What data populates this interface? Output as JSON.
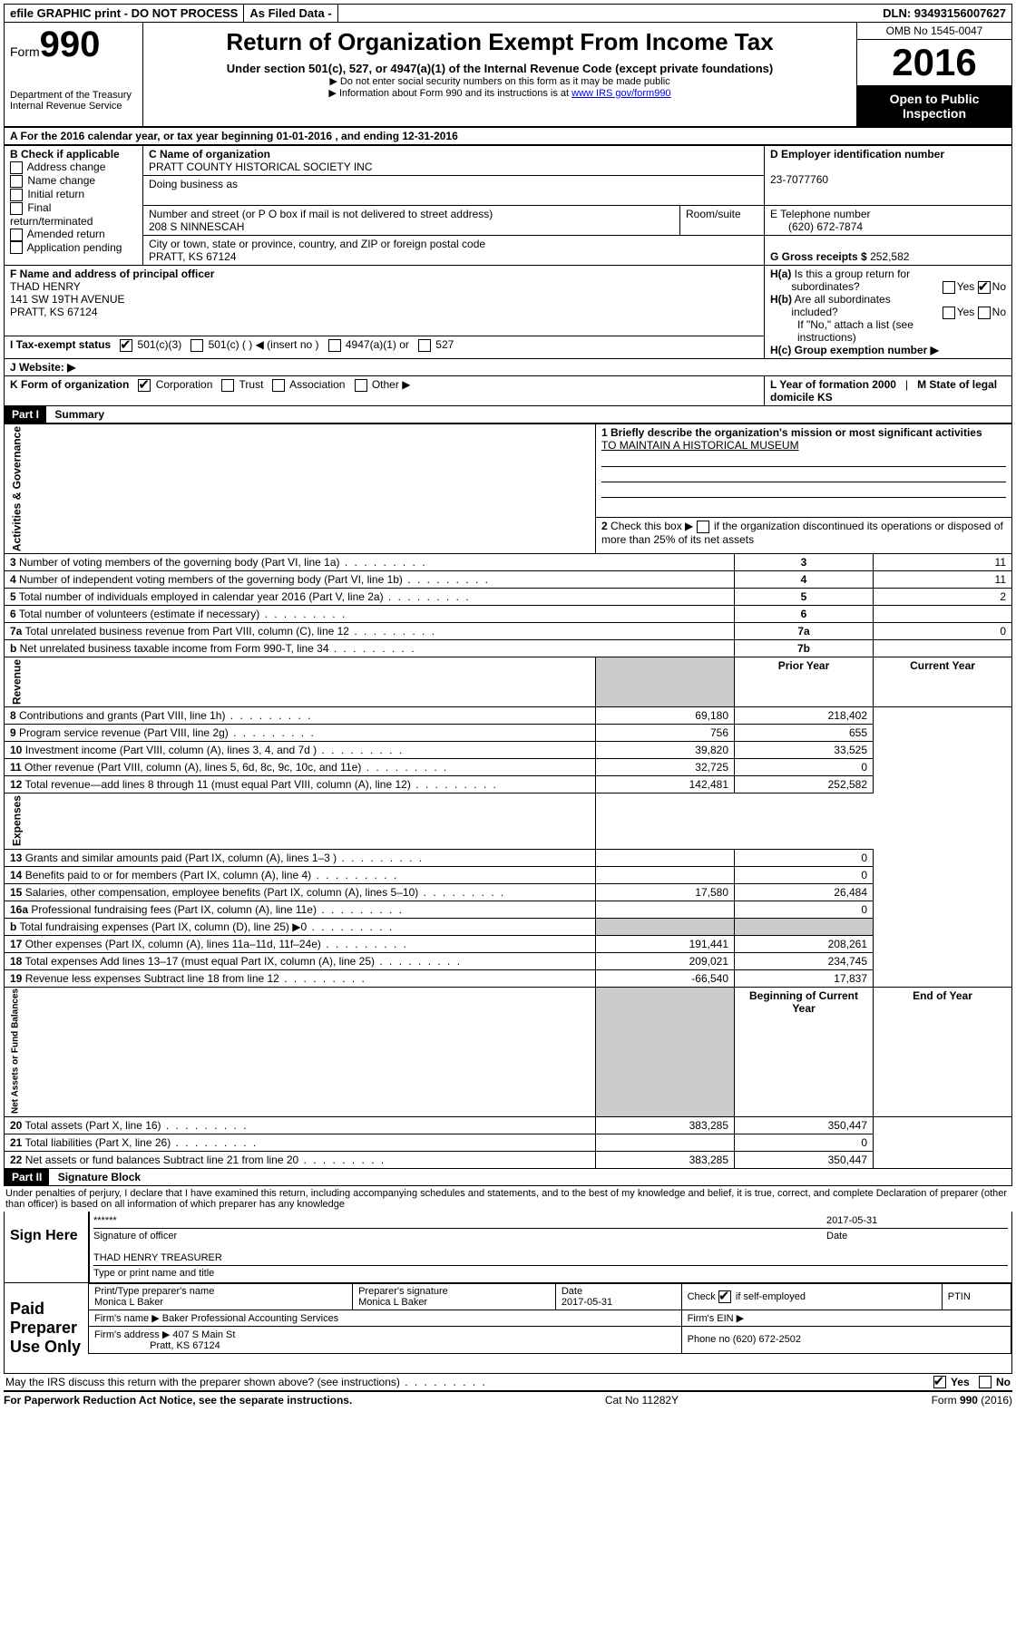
{
  "top": {
    "efile": "efile GRAPHIC print - DO NOT PROCESS",
    "asfiled": "As Filed Data -",
    "dln": "DLN: 93493156007627"
  },
  "header": {
    "form_label": "Form",
    "form_num": "990",
    "dept1": "Department of the Treasury",
    "dept2": "Internal Revenue Service",
    "title": "Return of Organization Exempt From Income Tax",
    "sub1": "Under section 501(c), 527, or 4947(a)(1) of the Internal Revenue Code (except private foundations)",
    "note1": "▶ Do not enter social security numbers on this form as it may be made public",
    "note2_pre": "▶ Information about Form 990 and its instructions is at ",
    "note2_link": "www IRS gov/form990",
    "omb": "OMB No 1545-0047",
    "year": "2016",
    "inspect": "Open to Public Inspection"
  },
  "lineA": "A  For the 2016 calendar year, or tax year beginning 01-01-2016  , and ending 12-31-2016",
  "boxB": {
    "label": "B Check if applicable",
    "opts": [
      "Address change",
      "Name change",
      "Initial return",
      "Final return/terminated",
      "Amended return",
      "Application pending"
    ]
  },
  "boxC": {
    "label": "C Name of organization",
    "name": "PRATT COUNTY HISTORICAL SOCIETY INC",
    "dba_label": "Doing business as",
    "street_label": "Number and street (or P O  box if mail is not delivered to street address)",
    "room_label": "Room/suite",
    "street": "208 S NINNESCAH",
    "city_label": "City or town, state or province, country, and ZIP or foreign postal code",
    "city": "PRATT, KS  67124"
  },
  "boxD": {
    "label": "D Employer identification number",
    "val": "23-7077760"
  },
  "boxE": {
    "label": "E Telephone number",
    "val": "(620) 672-7874"
  },
  "boxG": {
    "label": "G Gross receipts $",
    "val": "252,582"
  },
  "boxF": {
    "label": "F  Name and address of principal officer",
    "name": "THAD HENRY",
    "addr1": "141 SW 19TH AVENUE",
    "addr2": "PRATT, KS  67124"
  },
  "boxH": {
    "a": "H(a)  Is this a group return for subordinates?",
    "b": "H(b)  Are all subordinates included?",
    "note": "If \"No,\" attach a list  (see instructions)",
    "c": "H(c)  Group exemption number ▶",
    "yes": "Yes",
    "no": "No"
  },
  "lineI": {
    "label": "I  Tax-exempt status",
    "o1": "501(c)(3)",
    "o2": "501(c) (  )",
    "o2b": "◀ (insert no )",
    "o3": "4947(a)(1) or",
    "o4": "527"
  },
  "lineJ": "J  Website: ▶",
  "lineK": {
    "label": "K Form of organization",
    "o1": "Corporation",
    "o2": "Trust",
    "o3": "Association",
    "o4": "Other ▶"
  },
  "lineL": {
    "label": "L Year of formation  2000"
  },
  "lineM": {
    "label": "M State of legal domicile  KS"
  },
  "part1": {
    "hdr": "Part I",
    "title": "Summary"
  },
  "summary": {
    "l1": "1 Briefly describe the organization's mission or most significant activities",
    "mission": "TO MAINTAIN A HISTORICAL MUSEUM",
    "l2": "2  Check this box ▶        if the organization discontinued its operations or disposed of more than 25% of its net assets",
    "rows_a": [
      {
        "n": "3",
        "t": "Number of voting members of the governing body (Part VI, line 1a)",
        "k": "3",
        "v": "11"
      },
      {
        "n": "4",
        "t": "Number of independent voting members of the governing body (Part VI, line 1b)",
        "k": "4",
        "v": "11"
      },
      {
        "n": "5",
        "t": "Total number of individuals employed in calendar year 2016 (Part V, line 2a)",
        "k": "5",
        "v": "2"
      },
      {
        "n": "6",
        "t": "Total number of volunteers (estimate if necessary)",
        "k": "6",
        "v": ""
      },
      {
        "n": "7a",
        "t": "Total unrelated business revenue from Part VIII, column (C), line 12",
        "k": "7a",
        "v": "0"
      },
      {
        "n": "b",
        "t": "Net unrelated business taxable income from Form 990-T, line 34",
        "k": "7b",
        "v": ""
      }
    ],
    "col_prior": "Prior Year",
    "col_curr": "Current Year",
    "col_begin": "Beginning of Current Year",
    "col_end": "End of Year",
    "rev": [
      {
        "n": "8",
        "t": "Contributions and grants (Part VIII, line 1h)",
        "p": "69,180",
        "c": "218,402"
      },
      {
        "n": "9",
        "t": "Program service revenue (Part VIII, line 2g)",
        "p": "756",
        "c": "655"
      },
      {
        "n": "10",
        "t": "Investment income (Part VIII, column (A), lines 3, 4, and 7d )",
        "p": "39,820",
        "c": "33,525"
      },
      {
        "n": "11",
        "t": "Other revenue (Part VIII, column (A), lines 5, 6d, 8c, 9c, 10c, and 11e)",
        "p": "32,725",
        "c": "0"
      },
      {
        "n": "12",
        "t": "Total revenue—add lines 8 through 11 (must equal Part VIII, column (A), line 12)",
        "p": "142,481",
        "c": "252,582"
      }
    ],
    "exp": [
      {
        "n": "13",
        "t": "Grants and similar amounts paid (Part IX, column (A), lines 1–3 )",
        "p": "",
        "c": "0"
      },
      {
        "n": "14",
        "t": "Benefits paid to or for members (Part IX, column (A), line 4)",
        "p": "",
        "c": "0"
      },
      {
        "n": "15",
        "t": "Salaries, other compensation, employee benefits (Part IX, column (A), lines 5–10)",
        "p": "17,580",
        "c": "26,484"
      },
      {
        "n": "16a",
        "t": "Professional fundraising fees (Part IX, column (A), line 11e)",
        "p": "",
        "c": "0"
      },
      {
        "n": "b",
        "t": "Total fundraising expenses (Part IX, column (D), line 25) ▶0",
        "p": "GREY",
        "c": "GREY"
      },
      {
        "n": "17",
        "t": "Other expenses (Part IX, column (A), lines 11a–11d, 11f–24e)",
        "p": "191,441",
        "c": "208,261"
      },
      {
        "n": "18",
        "t": "Total expenses  Add lines 13–17 (must equal Part IX, column (A), line 25)",
        "p": "209,021",
        "c": "234,745"
      },
      {
        "n": "19",
        "t": "Revenue less expenses  Subtract line 18 from line 12",
        "p": "-66,540",
        "c": "17,837"
      }
    ],
    "net": [
      {
        "n": "20",
        "t": "Total assets (Part X, line 16)",
        "p": "383,285",
        "c": "350,447"
      },
      {
        "n": "21",
        "t": "Total liabilities (Part X, line 26)",
        "p": "",
        "c": "0"
      },
      {
        "n": "22",
        "t": "Net assets or fund balances  Subtract line 21 from line 20",
        "p": "383,285",
        "c": "350,447"
      }
    ],
    "vert_a": "Activities & Governance",
    "vert_r": "Revenue",
    "vert_e": "Expenses",
    "vert_n": "Net Assets or Fund Balances"
  },
  "part2": {
    "hdr": "Part II",
    "title": "Signature Block"
  },
  "perjury": "Under penalties of perjury, I declare that I have examined this return, including accompanying schedules and statements, and to the best of my knowledge and belief, it is true, correct, and complete  Declaration of preparer (other than officer) is based on all information of which preparer has any knowledge",
  "sign": {
    "here": "Sign Here",
    "stars": "******",
    "sig_label": "Signature of officer",
    "date": "2017-05-31",
    "date_label": "Date",
    "name": "THAD HENRY TREASURER",
    "name_label": "Type or print name and title"
  },
  "prep": {
    "label": "Paid Preparer Use Only",
    "c1": "Print/Type preparer's name",
    "v1": "Monica L Baker",
    "c2": "Preparer's signature",
    "v2": "Monica L Baker",
    "c3": "Date",
    "v3": "2017-05-31",
    "c4_pre": "Check",
    "c4_post": "if self-employed",
    "c5": "PTIN",
    "firm_label": "Firm's name    ▶",
    "firm": "Baker Professional Accounting Services",
    "firm_ein": "Firm's EIN ▶",
    "addr_label": "Firm's address ▶",
    "addr": "407 S Main St",
    "addr2": "Pratt, KS  67124",
    "phone": "Phone no  (620) 672-2502"
  },
  "discuss": "May the IRS discuss this return with the preparer shown above? (see instructions)",
  "discuss_yes": "Yes",
  "discuss_no": "No",
  "footer": {
    "l": "For Paperwork Reduction Act Notice, see the separate instructions.",
    "m": "Cat  No  11282Y",
    "r": "Form 990 (2016)"
  }
}
